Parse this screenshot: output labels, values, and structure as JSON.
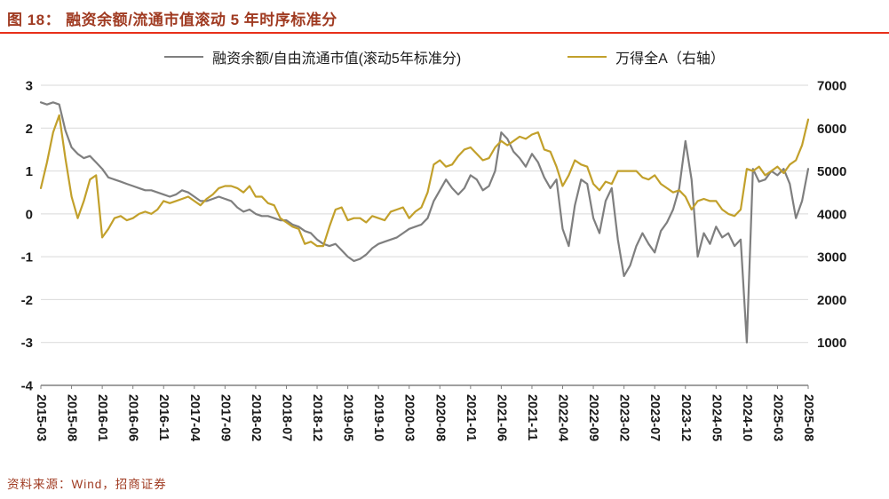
{
  "header": {
    "figure_label": "图 18：",
    "title": "融资余额/流通市值滚动 5 年时序标准分"
  },
  "legend": {
    "series1": "融资余额/自由流通市值(滚动5年标准分)",
    "series2": "万得全A（右轴）"
  },
  "footer": {
    "source": "资料来源：Wind，招商证券"
  },
  "colors": {
    "series1": "#7f7f7f",
    "series2": "#c2a02b",
    "title": "#a03b22",
    "rule": "#e8301a",
    "grid": "#d9d9d9",
    "axis": "#808080",
    "tick_text": "#1a1a1a"
  },
  "chart_data": {
    "type": "line",
    "title": "融资余额/流通市值滚动 5 年时序标准分",
    "grid": "horizontal",
    "legend_position": "top",
    "label_every": 5,
    "x_tick_labels": [
      "2015-03",
      "2015-08",
      "2016-01",
      "2016-06",
      "2016-11",
      "2017-04",
      "2017-09",
      "2018-02",
      "2018-07",
      "2018-12",
      "2019-05",
      "2019-10",
      "2020-03",
      "2020-08",
      "2021-01",
      "2021-06",
      "2021-11",
      "2022-04",
      "2022-09",
      "2023-02",
      "2023-07",
      "2023-12",
      "2024-05",
      "2024-10",
      "2025-03",
      "2025-08"
    ],
    "left_axis": {
      "ticks": [
        3,
        2,
        1,
        0,
        -1,
        -2,
        -3,
        -4
      ],
      "min": -4,
      "max": 3
    },
    "right_axis": {
      "ticks": [
        7000,
        6000,
        5000,
        4000,
        3000,
        2000,
        1000
      ],
      "map_offset": 4000,
      "map_scale": 1000
    },
    "series": [
      {
        "name": "融资余额/自由流通市值(滚动5年标准分)",
        "axis": "left",
        "color": "#7f7f7f",
        "values": [
          2.6,
          2.55,
          2.6,
          2.55,
          1.95,
          1.55,
          1.4,
          1.3,
          1.35,
          1.2,
          1.05,
          0.85,
          0.8,
          0.75,
          0.7,
          0.65,
          0.6,
          0.55,
          0.55,
          0.5,
          0.45,
          0.4,
          0.45,
          0.55,
          0.5,
          0.4,
          0.3,
          0.3,
          0.35,
          0.4,
          0.35,
          0.3,
          0.15,
          0.05,
          0.1,
          0.0,
          -0.05,
          -0.05,
          -0.1,
          -0.15,
          -0.15,
          -0.25,
          -0.3,
          -0.4,
          -0.45,
          -0.6,
          -0.7,
          -0.75,
          -0.7,
          -0.85,
          -1.0,
          -1.1,
          -1.05,
          -0.95,
          -0.8,
          -0.7,
          -0.65,
          -0.6,
          -0.55,
          -0.45,
          -0.35,
          -0.3,
          -0.25,
          -0.1,
          0.3,
          0.55,
          0.8,
          0.6,
          0.45,
          0.6,
          0.9,
          0.8,
          0.55,
          0.65,
          1.0,
          1.9,
          1.75,
          1.45,
          1.3,
          1.1,
          1.4,
          1.2,
          0.85,
          0.6,
          0.8,
          -0.35,
          -0.75,
          0.2,
          0.8,
          0.7,
          -0.1,
          -0.45,
          0.3,
          0.6,
          -0.6,
          -1.45,
          -1.2,
          -0.75,
          -0.45,
          -0.7,
          -0.9,
          -0.4,
          -0.2,
          0.1,
          0.6,
          1.7,
          0.8,
          -1.0,
          -0.45,
          -0.7,
          -0.3,
          -0.55,
          -0.45,
          -0.75,
          -0.6,
          -3.0,
          1.05,
          0.75,
          0.8,
          1.0,
          0.9,
          1.05,
          0.7,
          -0.1,
          0.3,
          1.05
        ]
      },
      {
        "name": "万得全A（右轴）",
        "axis": "right",
        "color": "#c2a02b",
        "values": [
          4600,
          5200,
          5900,
          6300,
          5300,
          4400,
          3900,
          4300,
          4800,
          4900,
          3450,
          3650,
          3900,
          3950,
          3850,
          3900,
          4000,
          4050,
          4000,
          4100,
          4300,
          4250,
          4300,
          4350,
          4400,
          4300,
          4200,
          4350,
          4450,
          4600,
          4650,
          4650,
          4600,
          4500,
          4650,
          4400,
          4400,
          4250,
          4200,
          3900,
          3800,
          3700,
          3650,
          3300,
          3350,
          3250,
          3250,
          3700,
          4100,
          4150,
          3850,
          3900,
          3900,
          3800,
          3950,
          3900,
          3850,
          4050,
          4100,
          4150,
          3900,
          4050,
          4150,
          4500,
          5150,
          5250,
          5100,
          5150,
          5350,
          5500,
          5550,
          5400,
          5250,
          5300,
          5550,
          5700,
          5600,
          5700,
          5800,
          5750,
          5850,
          5900,
          5500,
          5450,
          5100,
          4650,
          4900,
          5250,
          5150,
          5100,
          4700,
          4550,
          4750,
          4700,
          5000,
          5000,
          5000,
          5000,
          4850,
          4800,
          4900,
          4700,
          4600,
          4500,
          4550,
          4400,
          4100,
          4300,
          4350,
          4300,
          4300,
          4100,
          4000,
          3950,
          4100,
          5050,
          5000,
          5100,
          4900,
          5000,
          5100,
          4950,
          5150,
          5250,
          5600,
          6200
        ]
      }
    ]
  }
}
